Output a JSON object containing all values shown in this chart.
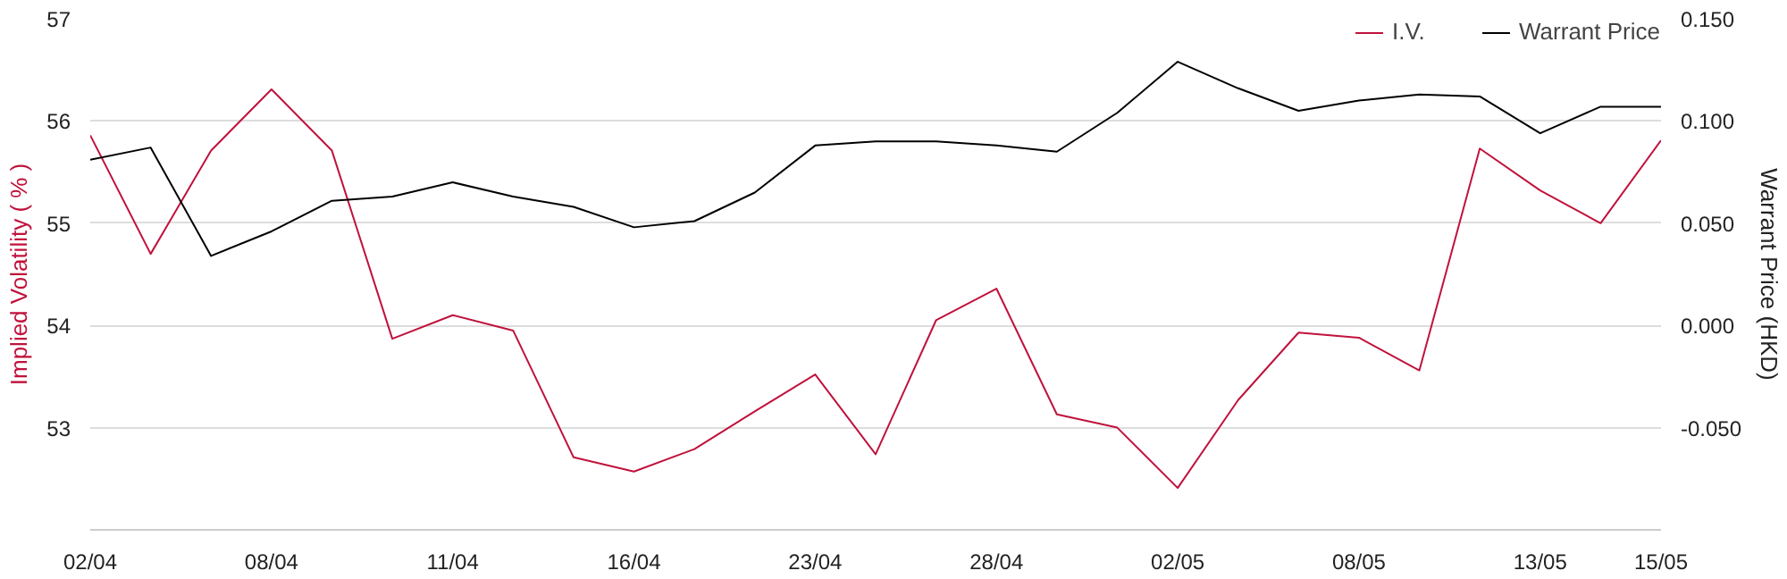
{
  "chart_data": {
    "type": "line",
    "categories": [
      "02/04",
      null,
      null,
      "08/04",
      null,
      null,
      "11/04",
      null,
      null,
      "16/04",
      null,
      null,
      "23/04",
      null,
      null,
      "28/04",
      null,
      null,
      "02/05",
      null,
      null,
      "08/05",
      null,
      null,
      "13/05",
      null,
      "15/05"
    ],
    "ylabel": "Implied Volatility ( % )",
    "y2label": "Warrant Price (HKD)",
    "ylim": [
      52,
      57
    ],
    "yticks": [
      53,
      54,
      55,
      56,
      57
    ],
    "y2lim": [
      -0.1,
      0.15
    ],
    "y2ticks": [
      {
        "value": -0.05,
        "label": "-0.050"
      },
      {
        "value": 0,
        "label": "0.000"
      },
      {
        "value": 0.05,
        "label": "0.050"
      },
      {
        "value": 0.1,
        "label": "0.100"
      },
      {
        "value": 0.15,
        "label": "0.150"
      }
    ],
    "grid": "y",
    "legend": "top right",
    "marker": "none",
    "line_style": "solid",
    "series": [
      {
        "name": "I.V.",
        "color": "#c0123c",
        "values": [
          55.86,
          54.7,
          55.71,
          56.31,
          55.71,
          53.87,
          54.1,
          53.95,
          52.71,
          52.57,
          52.79,
          53.16,
          53.52,
          52.74,
          54.05,
          54.36,
          53.13,
          53.0,
          52.41,
          53.27,
          53.93,
          53.88,
          53.56,
          55.73,
          55.32,
          55.0,
          55.81
        ]
      },
      {
        "name": "Warrant Price",
        "color": "#000000",
        "axis": "y2",
        "values": [
          0.081,
          0.087,
          0.034,
          0.046,
          0.061,
          0.063,
          0.07,
          0.063,
          0.058,
          0.048,
          0.051,
          0.065,
          0.088,
          0.09,
          0.09,
          0.088,
          0.085,
          0.104,
          0.129,
          0.116,
          0.105,
          0.11,
          0.113,
          0.112,
          0.094,
          0.107,
          0.107
        ]
      }
    ]
  }
}
